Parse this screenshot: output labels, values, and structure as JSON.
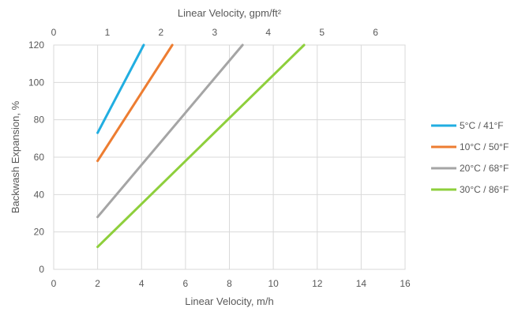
{
  "chart_data": {
    "type": "line",
    "xlabel": "Linear Velocity, m/h",
    "x2label": "Linear Velocity, gpm/ft²",
    "ylabel": "Backwash Expansion, %",
    "xlim": [
      0,
      16
    ],
    "ylim": [
      0,
      120
    ],
    "x2lim": [
      0,
      6.55
    ],
    "xticks": [
      0,
      2,
      4,
      6,
      8,
      10,
      12,
      14,
      16
    ],
    "x2ticks": [
      0,
      1,
      2,
      3,
      4,
      5,
      6
    ],
    "yticks": [
      0,
      20,
      40,
      60,
      80,
      100,
      120
    ],
    "grid": "vertical-and-horizontal",
    "legend_position": "right",
    "series": [
      {
        "name": "5°C / 41°F",
        "color": "#21aee1",
        "points": [
          [
            2,
            73
          ],
          [
            4.1,
            120
          ]
        ]
      },
      {
        "name": "10°C / 50°F",
        "color": "#ed7d31",
        "points": [
          [
            2,
            58
          ],
          [
            5.4,
            120
          ]
        ]
      },
      {
        "name": "20°C / 68°F",
        "color": "#a5a5a5",
        "points": [
          [
            2,
            28
          ],
          [
            8.6,
            120
          ]
        ]
      },
      {
        "name": "30°C / 86°F",
        "color": "#8ecf3c",
        "points": [
          [
            2,
            12
          ],
          [
            11.4,
            120
          ]
        ]
      }
    ]
  }
}
